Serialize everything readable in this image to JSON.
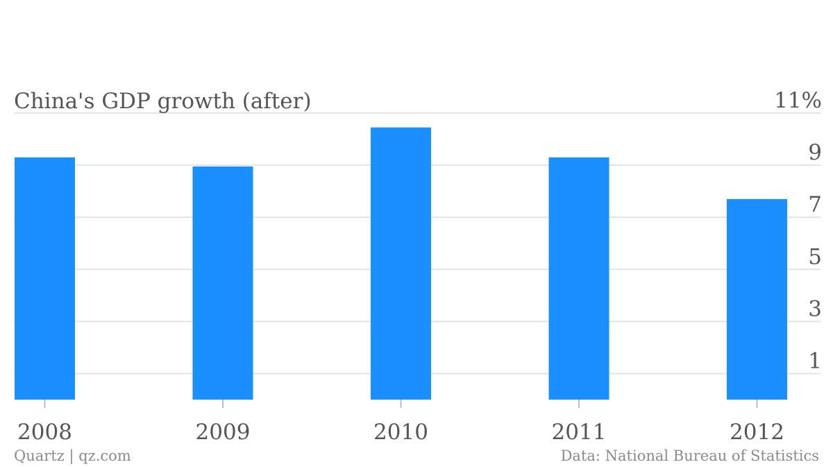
{
  "chart_data": {
    "type": "bar",
    "title": "China's GDP growth (after)",
    "categories": [
      "2008",
      "2009",
      "2010",
      "2011",
      "2012"
    ],
    "values": [
      9.3,
      8.95,
      10.45,
      9.3,
      7.7
    ],
    "ylim": [
      0,
      11
    ],
    "yticks": [
      1,
      3,
      5,
      7,
      9,
      11
    ],
    "ytick_labels": [
      "1",
      "3",
      "5",
      "7",
      "9",
      "11%"
    ],
    "grid": true,
    "y_axis_position": "right",
    "colors": {
      "bar": "#1a8fff",
      "grid": "#e3e3e3",
      "text": "#555555",
      "footer": "#8a8a8a"
    }
  },
  "footer": {
    "source_left": "Quartz | qz.com",
    "source_right": "Data: National Bureau of Statistics"
  }
}
